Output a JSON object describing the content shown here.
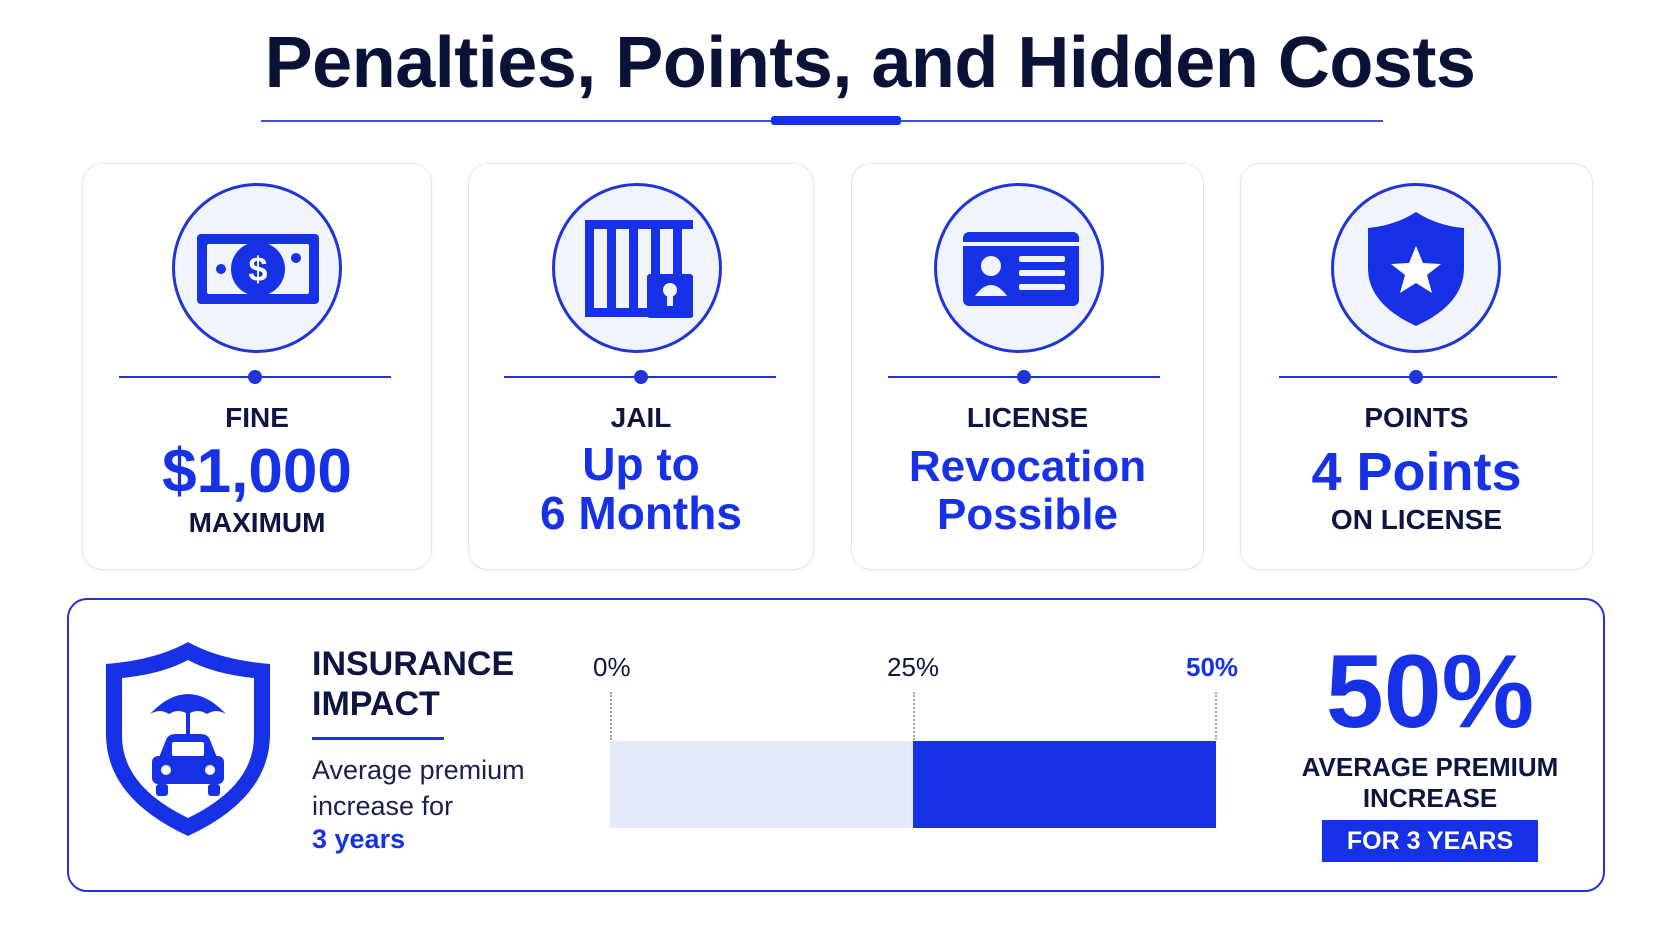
{
  "title": "Penalties, Points, and Hidden Costs",
  "accent_color": "#1631e6",
  "cards": [
    {
      "icon": "money-bill-icon",
      "label": "FINE",
      "value": "$1,000",
      "sub": "MAXIMUM"
    },
    {
      "icon": "jail-bars-icon",
      "label": "JAIL",
      "value_line1": "Up to",
      "value_line2": "6 Months"
    },
    {
      "icon": "license-card-icon",
      "label": "LICENSE",
      "value_line1": "Revocation",
      "value_line2": "Possible"
    },
    {
      "icon": "shield-star-icon",
      "label": "POINTS",
      "value": "4 Points",
      "sub": "ON LICENSE"
    }
  ],
  "insurance": {
    "icon": "shield-car-umbrella-icon",
    "title_line1": "INSURANCE",
    "title_line2": "IMPACT",
    "desc_line1": "Average premium",
    "desc_line2": "increase for",
    "years": "3 years",
    "ticks": [
      "0%",
      "25%",
      "50%"
    ],
    "increase_percent": 50,
    "shaded_from_percent": 25,
    "big_value": "50%",
    "big_label_line1": "AVERAGE PREMIUM",
    "big_label_line2": "INCREASE",
    "badge": "FOR 3 YEARS"
  }
}
